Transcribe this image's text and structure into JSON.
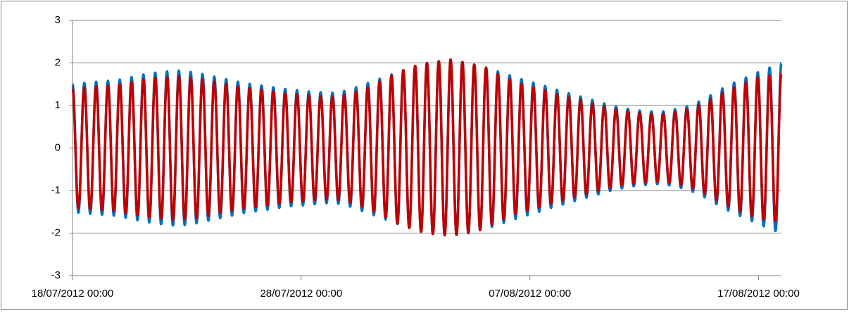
{
  "chart_data": {
    "type": "line",
    "x": [
      "18/07/2012 00:00",
      "18/07/2012 06:12",
      "18/07/2012 12:24",
      "18/07/2012 18:36",
      "19/07/2012 00:48",
      "19/07/2012 07:00",
      "19/07/2012 13:12",
      "19/07/2012 19:24",
      "20/07/2012 01:36",
      "20/07/2012 07:48",
      "20/07/2012 14:00",
      "20/07/2012 20:12",
      "21/07/2012 02:24",
      "21/07/2012 08:36",
      "21/07/2012 14:48",
      "21/07/2012 21:00",
      "22/07/2012 03:12",
      "22/07/2012 09:24",
      "22/07/2012 15:36",
      "22/07/2012 21:48",
      "23/07/2012 04:00",
      "23/07/2012 10:12",
      "23/07/2012 16:24",
      "23/07/2012 22:36",
      "24/07/2012 04:48",
      "24/07/2012 11:00",
      "24/07/2012 17:12",
      "24/07/2012 23:24",
      "25/07/2012 05:36",
      "25/07/2012 11:48",
      "25/07/2012 18:00",
      "26/07/2012 00:12",
      "26/07/2012 06:24",
      "26/07/2012 12:36",
      "26/07/2012 18:48",
      "27/07/2012 01:00",
      "27/07/2012 07:12",
      "27/07/2012 13:24",
      "27/07/2012 19:36",
      "28/07/2012 01:48",
      "28/07/2012 08:00",
      "28/07/2012 14:12",
      "28/07/2012 20:24",
      "29/07/2012 02:36",
      "29/07/2012 08:48",
      "29/07/2012 15:00",
      "29/07/2012 21:12",
      "30/07/2012 03:24",
      "30/07/2012 09:36",
      "30/07/2012 15:48",
      "30/07/2012 22:00",
      "31/07/2012 04:12",
      "31/07/2012 10:24",
      "31/07/2012 16:36",
      "31/07/2012 22:48",
      "01/08/2012 05:00",
      "01/08/2012 11:12",
      "01/08/2012 17:24",
      "01/08/2012 23:36",
      "02/08/2012 05:48",
      "02/08/2012 12:00",
      "02/08/2012 18:12",
      "03/08/2012 00:24",
      "03/08/2012 06:36",
      "03/08/2012 12:48",
      "03/08/2012 19:00",
      "04/08/2012 01:12",
      "04/08/2012 07:24",
      "04/08/2012 13:36",
      "04/08/2012 19:48",
      "05/08/2012 02:00",
      "05/08/2012 08:12",
      "05/08/2012 14:24",
      "05/08/2012 20:36",
      "06/08/2012 02:48",
      "06/08/2012 09:00",
      "06/08/2012 15:12",
      "06/08/2012 21:24",
      "07/08/2012 03:36",
      "07/08/2012 09:48",
      "07/08/2012 16:00",
      "07/08/2012 22:12",
      "08/08/2012 04:24",
      "08/08/2012 10:36",
      "08/08/2012 16:48",
      "08/08/2012 23:00",
      "09/08/2012 05:12",
      "09/08/2012 11:24",
      "09/08/2012 17:36",
      "09/08/2012 23:48",
      "10/08/2012 06:00",
      "10/08/2012 12:12",
      "10/08/2012 18:24",
      "11/08/2012 00:36",
      "11/08/2012 06:48",
      "11/08/2012 13:00",
      "11/08/2012 19:12",
      "12/08/2012 01:24",
      "12/08/2012 07:36",
      "12/08/2012 13:48",
      "12/08/2012 20:00",
      "13/08/2012 02:12",
      "13/08/2012 08:24",
      "13/08/2012 14:36",
      "13/08/2012 20:48",
      "14/08/2012 03:00",
      "14/08/2012 09:12",
      "14/08/2012 15:24",
      "14/08/2012 21:36",
      "15/08/2012 03:48",
      "15/08/2012 10:00",
      "15/08/2012 16:12",
      "15/08/2012 22:24",
      "16/08/2012 04:36",
      "16/08/2012 10:48",
      "16/08/2012 17:00",
      "16/08/2012 23:12",
      "17/08/2012 05:24",
      "17/08/2012 11:36",
      "17/08/2012 17:48",
      "18/08/2012 00:00"
    ],
    "series": [
      {
        "color": "#0070c0",
        "values": [
          1.5,
          -1.52,
          1.53,
          -1.55,
          1.56,
          -1.57,
          1.58,
          -1.59,
          1.61,
          -1.64,
          1.67,
          -1.7,
          1.73,
          -1.75,
          1.77,
          -1.79,
          1.8,
          -1.82,
          1.82,
          -1.81,
          1.79,
          -1.77,
          1.74,
          -1.71,
          1.68,
          -1.65,
          1.62,
          -1.59,
          1.56,
          -1.53,
          1.51,
          -1.49,
          1.47,
          -1.45,
          1.43,
          -1.41,
          1.39,
          -1.37,
          1.36,
          -1.35,
          1.33,
          -1.32,
          1.31,
          -1.3,
          1.3,
          -1.31,
          1.34,
          -1.38,
          1.43,
          -1.48,
          1.53,
          -1.58,
          1.63,
          -1.68,
          1.73,
          -1.78,
          1.83,
          -1.88,
          1.93,
          -1.97,
          2.0,
          -2.02,
          2.04,
          -2.05,
          2.05,
          -2.04,
          2.02,
          -2.0,
          1.96,
          -1.93,
          1.89,
          -1.85,
          1.8,
          -1.76,
          1.71,
          -1.67,
          1.62,
          -1.58,
          1.54,
          -1.5,
          1.46,
          -1.41,
          1.37,
          -1.33,
          1.29,
          -1.25,
          1.21,
          -1.17,
          1.13,
          -1.09,
          1.05,
          -1.01,
          0.98,
          -0.95,
          0.92,
          -0.9,
          0.88,
          -0.87,
          0.86,
          -0.85,
          0.86,
          -0.88,
          0.91,
          -0.94,
          0.98,
          -1.03,
          1.09,
          -1.16,
          1.24,
          -1.32,
          1.4,
          -1.47,
          1.54,
          -1.6,
          1.66,
          -1.72,
          1.78,
          -1.84,
          1.89,
          -1.95,
          2.0
        ]
      },
      {
        "color": "#c00000",
        "values": [
          1.4,
          -1.41,
          1.42,
          -1.44,
          1.45,
          -1.46,
          1.47,
          -1.48,
          1.5,
          -1.53,
          1.55,
          -1.58,
          1.61,
          -1.63,
          1.65,
          -1.66,
          1.67,
          -1.69,
          1.69,
          -1.68,
          1.66,
          -1.65,
          1.62,
          -1.59,
          1.56,
          -1.53,
          1.51,
          -1.48,
          1.45,
          -1.42,
          1.4,
          -1.39,
          1.37,
          -1.35,
          1.33,
          -1.31,
          1.29,
          -1.27,
          1.26,
          -1.26,
          1.24,
          -1.23,
          1.22,
          -1.21,
          1.21,
          -1.22,
          1.25,
          -1.28,
          1.33,
          -1.38,
          1.42,
          -1.5,
          1.56,
          -1.63,
          1.7,
          -1.78,
          1.83,
          -1.88,
          1.93,
          -1.97,
          2.0,
          -2.02,
          2.04,
          -2.05,
          2.08,
          -2.04,
          2.02,
          -2.0,
          1.96,
          -1.93,
          1.89,
          -1.8,
          1.74,
          -1.68,
          1.62,
          -1.55,
          1.51,
          -1.47,
          1.43,
          -1.4,
          1.36,
          -1.31,
          1.27,
          -1.24,
          1.2,
          -1.16,
          1.13,
          -1.09,
          1.05,
          -1.01,
          0.98,
          -0.94,
          0.91,
          -0.88,
          0.86,
          -0.84,
          0.82,
          -0.81,
          0.8,
          -0.79,
          0.8,
          -0.82,
          0.85,
          -0.87,
          0.91,
          -0.96,
          1.01,
          -1.08,
          1.15,
          -1.23,
          1.3,
          -1.37,
          1.43,
          -1.49,
          1.54,
          -1.6,
          1.66,
          -1.68,
          1.7,
          -1.72,
          1.75
        ]
      }
    ],
    "xlim": [
      "18/07/2012 00:00",
      "18/08/2012 00:00"
    ],
    "xticks": [
      "18/07/2012 00:00",
      "28/07/2012 00:00",
      "07/08/2012 00:00",
      "17/08/2012 00:00"
    ],
    "ylim": [
      -3,
      3
    ],
    "yticks": [
      -3,
      -2,
      -1,
      0,
      1,
      2,
      3
    ],
    "grid": true
  }
}
